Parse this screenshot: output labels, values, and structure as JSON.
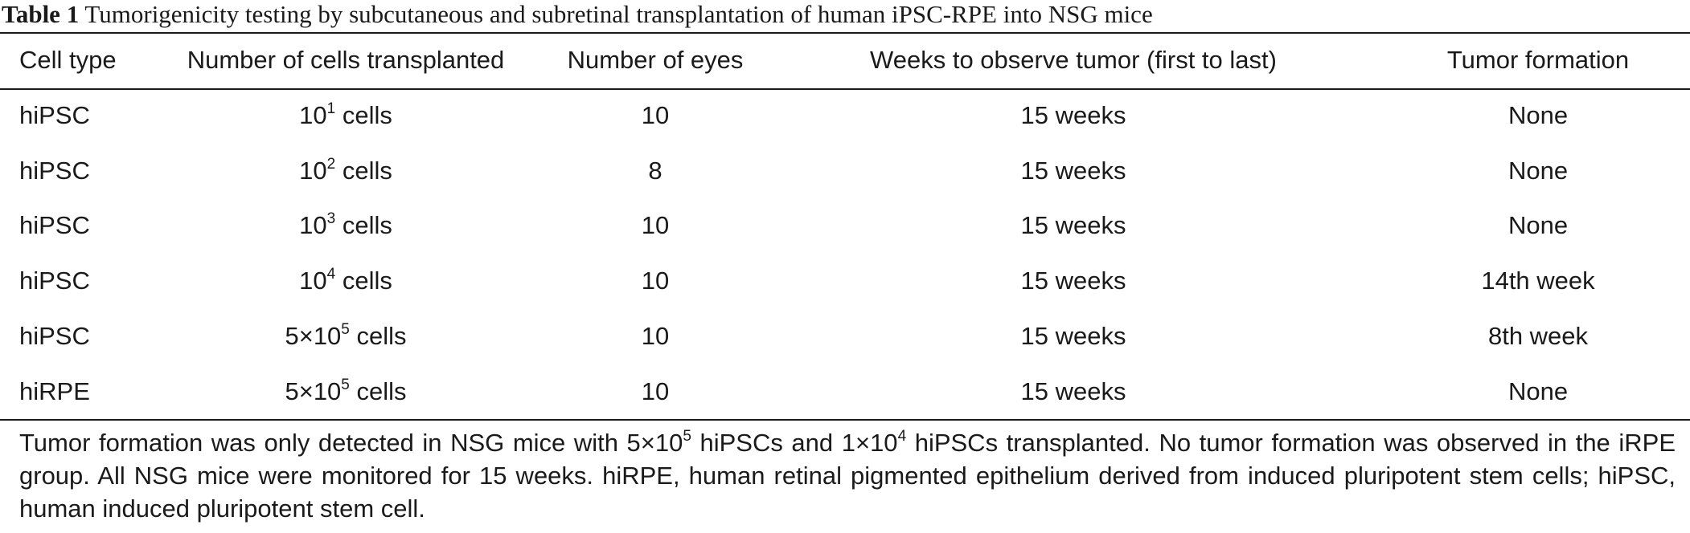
{
  "caption": {
    "label": "Table 1",
    "text": "Tumorigenicity testing by subcutaneous and subretinal transplantation of human iPSC-RPE into NSG mice"
  },
  "table": {
    "headers": [
      "Cell type",
      "Number of cells transplanted",
      "Number of eyes",
      "Weeks to observe tumor (first to last)",
      "Tumor formation"
    ],
    "rows": [
      {
        "cell_type": "hiPSC",
        "cells_prefix": "10",
        "cells_exp": "1",
        "cells_suffix": " cells",
        "eyes": "10",
        "weeks": "15 weeks",
        "tumor": "None"
      },
      {
        "cell_type": "hiPSC",
        "cells_prefix": "10",
        "cells_exp": "2",
        "cells_suffix": " cells",
        "eyes": "8",
        "weeks": "15 weeks",
        "tumor": "None"
      },
      {
        "cell_type": "hiPSC",
        "cells_prefix": "10",
        "cells_exp": "3",
        "cells_suffix": " cells",
        "eyes": "10",
        "weeks": "15 weeks",
        "tumor": "None"
      },
      {
        "cell_type": "hiPSC",
        "cells_prefix": "10",
        "cells_exp": "4",
        "cells_suffix": " cells",
        "eyes": "10",
        "weeks": "15 weeks",
        "tumor": "14th week"
      },
      {
        "cell_type": "hiPSC",
        "cells_prefix": "5×10",
        "cells_exp": "5",
        "cells_suffix": " cells",
        "eyes": "10",
        "weeks": "15 weeks",
        "tumor": "8th week"
      },
      {
        "cell_type": "hiRPE",
        "cells_prefix": "5×10",
        "cells_exp": "5",
        "cells_suffix": " cells",
        "eyes": "10",
        "weeks": "15 weeks",
        "tumor": "None"
      }
    ]
  },
  "footnote": {
    "part1": "Tumor formation was only detected in NSG mice with 5×10",
    "exp1": "5",
    "part2": " hiPSCs and 1×10",
    "exp2": "4",
    "part3": " hiPSCs transplanted. No tumor formation was observed in the iRPE group. All NSG mice were monitored for 15 weeks. hiRPE, human retinal pigmented epithelium derived from induced pluripotent stem cells; hiPSC, human induced pluripotent stem cell."
  }
}
